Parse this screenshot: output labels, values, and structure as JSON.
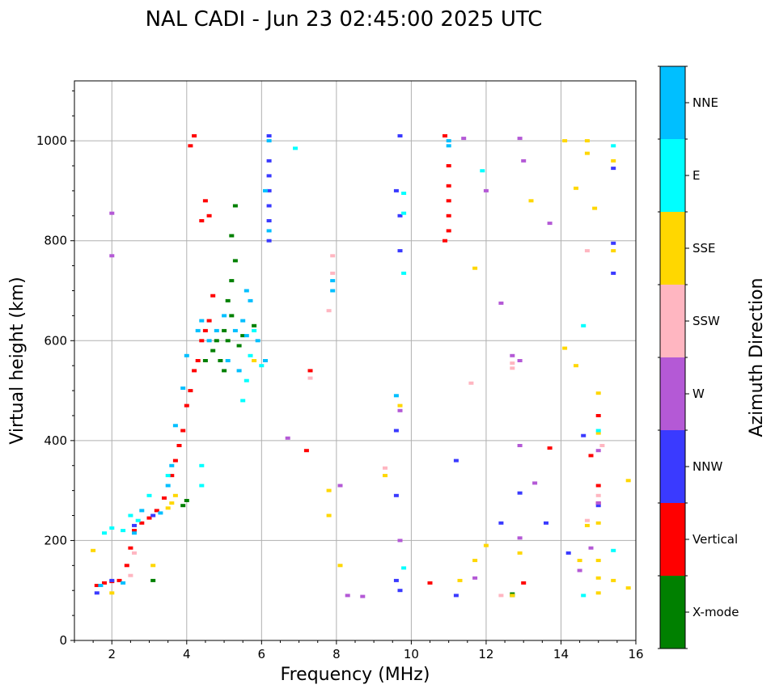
{
  "chart_data": {
    "type": "scatter",
    "title": "NAL CADI - Jun 23 02:45:00 2025 UTC",
    "xlabel": "Frequency (MHz)",
    "ylabel": "Virtual height (km)",
    "xlim": [
      1,
      16
    ],
    "ylim": [
      0,
      1120
    ],
    "xticks": [
      2,
      4,
      6,
      8,
      10,
      12,
      14,
      16
    ],
    "yticks": [
      0,
      200,
      400,
      600,
      800,
      1000
    ],
    "grid": true,
    "colorbar": {
      "label": "Azimuth Direction",
      "categories": [
        {
          "name": "X-mode",
          "color": "#008000"
        },
        {
          "name": "Vertical",
          "color": "#ff0000"
        },
        {
          "name": "NNW",
          "color": "#3a3aff"
        },
        {
          "name": "W",
          "color": "#b459d6"
        },
        {
          "name": "SSW",
          "color": "#ffb6c1"
        },
        {
          "name": "SSE",
          "color": "#ffd700"
        },
        {
          "name": "E",
          "color": "#00ffff"
        },
        {
          "name": "NNE",
          "color": "#00bfff"
        }
      ]
    },
    "series": [
      {
        "name": "Vertical",
        "points": [
          [
            1.6,
            110
          ],
          [
            1.8,
            115
          ],
          [
            2.0,
            118
          ],
          [
            2.2,
            120
          ],
          [
            2.4,
            150
          ],
          [
            2.5,
            185
          ],
          [
            2.6,
            220
          ],
          [
            2.8,
            235
          ],
          [
            3.0,
            245
          ],
          [
            3.2,
            260
          ],
          [
            3.4,
            285
          ],
          [
            3.6,
            330
          ],
          [
            3.7,
            360
          ],
          [
            3.8,
            390
          ],
          [
            3.9,
            420
          ],
          [
            4.0,
            470
          ],
          [
            4.1,
            500
          ],
          [
            4.2,
            540
          ],
          [
            4.3,
            560
          ],
          [
            4.4,
            600
          ],
          [
            4.5,
            620
          ],
          [
            4.6,
            640
          ],
          [
            4.7,
            690
          ],
          [
            4.1,
            990
          ],
          [
            4.2,
            1010
          ],
          [
            4.5,
            880
          ],
          [
            4.6,
            850
          ],
          [
            4.4,
            840
          ],
          [
            10.9,
            800
          ],
          [
            11.0,
            820
          ],
          [
            11.0,
            850
          ],
          [
            11.0,
            880
          ],
          [
            11.0,
            910
          ],
          [
            11.0,
            950
          ],
          [
            10.9,
            1010
          ],
          [
            10.5,
            115
          ],
          [
            7.3,
            540
          ],
          [
            7.2,
            380
          ],
          [
            13.0,
            115
          ],
          [
            13.7,
            385
          ],
          [
            15.0,
            310
          ],
          [
            15.0,
            450
          ],
          [
            15.0,
            275
          ],
          [
            14.8,
            370
          ]
        ]
      },
      {
        "name": "X-mode",
        "points": [
          [
            3.1,
            120
          ],
          [
            3.9,
            270
          ],
          [
            4.0,
            280
          ],
          [
            4.5,
            560
          ],
          [
            4.7,
            580
          ],
          [
            4.8,
            600
          ],
          [
            4.9,
            560
          ],
          [
            5.0,
            540
          ],
          [
            5.0,
            620
          ],
          [
            5.1,
            600
          ],
          [
            5.1,
            680
          ],
          [
            5.2,
            650
          ],
          [
            5.2,
            720
          ],
          [
            5.3,
            760
          ],
          [
            5.2,
            810
          ],
          [
            5.3,
            870
          ],
          [
            5.4,
            590
          ],
          [
            5.5,
            610
          ],
          [
            5.8,
            630
          ],
          [
            12.7,
            90
          ],
          [
            12.7,
            93
          ]
        ]
      },
      {
        "name": "NNW",
        "points": [
          [
            1.6,
            95
          ],
          [
            2.0,
            120
          ],
          [
            2.6,
            230
          ],
          [
            3.1,
            250
          ],
          [
            6.2,
            800
          ],
          [
            6.2,
            840
          ],
          [
            6.2,
            870
          ],
          [
            6.2,
            900
          ],
          [
            6.2,
            930
          ],
          [
            6.2,
            960
          ],
          [
            6.2,
            1010
          ],
          [
            9.6,
            120
          ],
          [
            9.7,
            100
          ],
          [
            9.6,
            290
          ],
          [
            9.6,
            420
          ],
          [
            9.7,
            780
          ],
          [
            9.7,
            850
          ],
          [
            9.6,
            900
          ],
          [
            9.7,
            1010
          ],
          [
            11.2,
            90
          ],
          [
            11.2,
            360
          ],
          [
            12.4,
            235
          ],
          [
            12.9,
            295
          ],
          [
            14.2,
            175
          ],
          [
            14.6,
            410
          ],
          [
            15.4,
            945
          ],
          [
            15.4,
            795
          ],
          [
            15.4,
            735
          ],
          [
            15.0,
            270
          ],
          [
            13.6,
            235
          ]
        ]
      },
      {
        "name": "W",
        "points": [
          [
            2.0,
            855
          ],
          [
            2.0,
            770
          ],
          [
            6.7,
            405
          ],
          [
            8.1,
            310
          ],
          [
            8.3,
            90
          ],
          [
            8.7,
            88
          ],
          [
            9.7,
            200
          ],
          [
            9.7,
            460
          ],
          [
            11.4,
            1005
          ],
          [
            11.7,
            125
          ],
          [
            12.0,
            900
          ],
          [
            12.4,
            675
          ],
          [
            12.7,
            570
          ],
          [
            12.9,
            560
          ],
          [
            12.9,
            205
          ],
          [
            12.9,
            390
          ],
          [
            12.9,
            1005
          ],
          [
            13.0,
            960
          ],
          [
            13.3,
            315
          ],
          [
            13.7,
            835
          ],
          [
            15.0,
            380
          ],
          [
            15.0,
            275
          ],
          [
            14.8,
            185
          ],
          [
            14.5,
            140
          ]
        ]
      },
      {
        "name": "SSW",
        "points": [
          [
            2.5,
            130
          ],
          [
            2.6,
            175
          ],
          [
            7.3,
            525
          ],
          [
            7.9,
            770
          ],
          [
            7.9,
            735
          ],
          [
            7.8,
            660
          ],
          [
            9.3,
            345
          ],
          [
            11.6,
            515
          ],
          [
            12.4,
            90
          ],
          [
            12.7,
            555
          ],
          [
            12.7,
            545
          ],
          [
            14.7,
            780
          ],
          [
            14.7,
            240
          ],
          [
            15.0,
            290
          ],
          [
            15.1,
            390
          ]
        ]
      },
      {
        "name": "SSE",
        "points": [
          [
            1.5,
            180
          ],
          [
            2.0,
            95
          ],
          [
            3.1,
            150
          ],
          [
            3.5,
            265
          ],
          [
            3.7,
            290
          ],
          [
            3.6,
            275
          ],
          [
            5.8,
            560
          ],
          [
            7.8,
            300
          ],
          [
            7.8,
            250
          ],
          [
            8.1,
            150
          ],
          [
            9.3,
            330
          ],
          [
            9.7,
            470
          ],
          [
            11.3,
            120
          ],
          [
            11.7,
            160
          ],
          [
            11.7,
            745
          ],
          [
            12.0,
            190
          ],
          [
            12.7,
            90
          ],
          [
            12.9,
            175
          ],
          [
            13.2,
            880
          ],
          [
            14.1,
            585
          ],
          [
            14.1,
            1000
          ],
          [
            14.4,
            905
          ],
          [
            14.4,
            550
          ],
          [
            14.7,
            1000
          ],
          [
            14.7,
            975
          ],
          [
            14.7,
            230
          ],
          [
            14.9,
            865
          ],
          [
            15.0,
            495
          ],
          [
            15.0,
            415
          ],
          [
            15.0,
            235
          ],
          [
            15.0,
            160
          ],
          [
            15.0,
            125
          ],
          [
            15.0,
            95
          ],
          [
            15.4,
            960
          ],
          [
            15.4,
            780
          ],
          [
            15.4,
            120
          ],
          [
            15.8,
            320
          ],
          [
            15.8,
            105
          ],
          [
            14.5,
            160
          ]
        ]
      },
      {
        "name": "E",
        "points": [
          [
            1.8,
            215
          ],
          [
            2.0,
            225
          ],
          [
            2.3,
            220
          ],
          [
            2.5,
            250
          ],
          [
            2.7,
            240
          ],
          [
            3.0,
            290
          ],
          [
            3.5,
            330
          ],
          [
            4.4,
            350
          ],
          [
            4.4,
            310
          ],
          [
            5.5,
            480
          ],
          [
            5.6,
            520
          ],
          [
            5.7,
            570
          ],
          [
            5.8,
            620
          ],
          [
            6.0,
            550
          ],
          [
            6.9,
            985
          ],
          [
            9.8,
            895
          ],
          [
            9.8,
            855
          ],
          [
            9.8,
            735
          ],
          [
            9.8,
            145
          ],
          [
            11.9,
            940
          ],
          [
            14.6,
            630
          ],
          [
            14.6,
            90
          ],
          [
            15.0,
            420
          ],
          [
            15.4,
            990
          ],
          [
            15.4,
            180
          ]
        ]
      },
      {
        "name": "NNE",
        "points": [
          [
            1.7,
            110
          ],
          [
            2.3,
            115
          ],
          [
            2.6,
            215
          ],
          [
            2.8,
            260
          ],
          [
            3.3,
            255
          ],
          [
            3.5,
            310
          ],
          [
            3.6,
            350
          ],
          [
            3.7,
            430
          ],
          [
            3.9,
            505
          ],
          [
            4.0,
            570
          ],
          [
            4.3,
            620
          ],
          [
            4.4,
            640
          ],
          [
            4.6,
            600
          ],
          [
            4.8,
            620
          ],
          [
            5.0,
            650
          ],
          [
            5.1,
            560
          ],
          [
            5.3,
            620
          ],
          [
            5.4,
            540
          ],
          [
            5.5,
            640
          ],
          [
            5.6,
            610
          ],
          [
            5.6,
            700
          ],
          [
            5.7,
            680
          ],
          [
            5.9,
            600
          ],
          [
            6.1,
            560
          ],
          [
            6.2,
            820
          ],
          [
            6.1,
            900
          ],
          [
            6.2,
            1000
          ],
          [
            7.9,
            720
          ],
          [
            7.9,
            700
          ],
          [
            9.6,
            490
          ],
          [
            11.0,
            1000
          ],
          [
            11.0,
            990
          ]
        ]
      }
    ]
  }
}
